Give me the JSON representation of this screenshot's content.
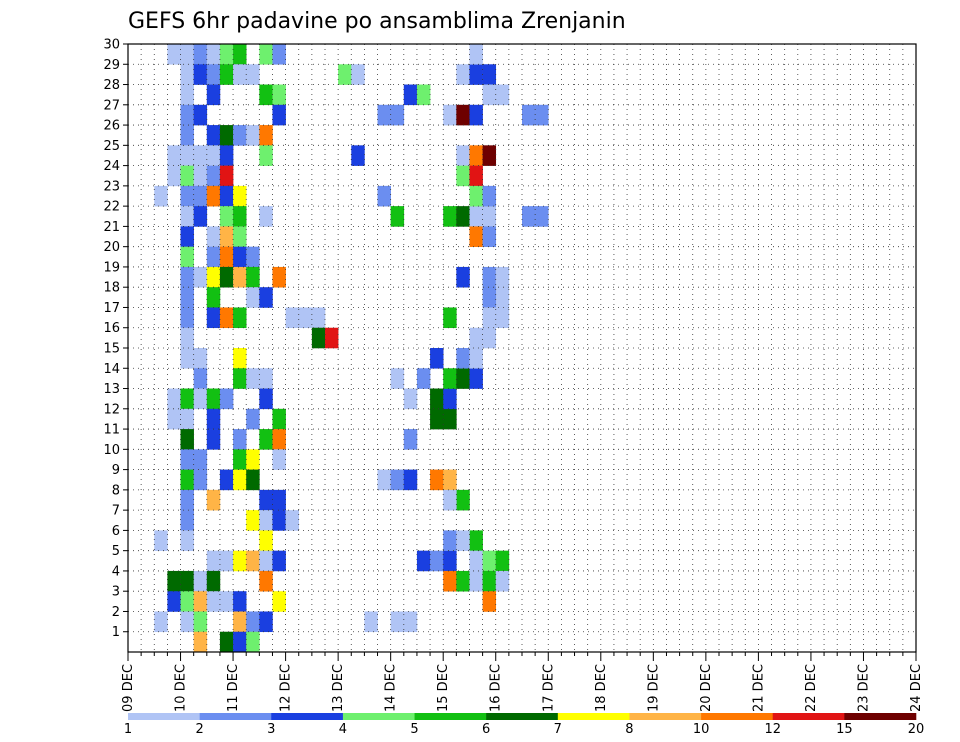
{
  "chart_data": {
    "type": "heatmap",
    "title": "GEFS 6hr padavine po ansamblima Zrenjanin",
    "xlabel": "",
    "ylabel": "",
    "x_axis": {
      "unit": "6-hour steps",
      "start_label_index": 0,
      "tick_labels": [
        "09 DEC",
        "10 DEC",
        "11 DEC",
        "12 DEC",
        "13 DEC",
        "14 DEC",
        "15 DEC",
        "16 DEC",
        "17 DEC",
        "18 DEC",
        "19 DEC",
        "20 DEC",
        "21 DEC",
        "22 DEC",
        "23 DEC",
        "24 DEC"
      ],
      "range": [
        0,
        60
      ]
    },
    "y_axis": {
      "tick_labels": [
        "1",
        "2",
        "3",
        "4",
        "5",
        "6",
        "7",
        "8",
        "9",
        "10",
        "11",
        "12",
        "13",
        "14",
        "15",
        "16",
        "17",
        "18",
        "19",
        "20",
        "21",
        "22",
        "23",
        "24",
        "25",
        "26",
        "27",
        "28",
        "29",
        "30"
      ],
      "range": [
        0,
        30
      ]
    },
    "grid": true,
    "colorbar": {
      "levels": [
        "1",
        "2",
        "3",
        "4",
        "5",
        "6",
        "7",
        "8",
        "10",
        "12",
        "15",
        "20"
      ],
      "colors": [
        "#b0c4f5",
        "#6b8ef0",
        "#1a3fe0",
        "#6ef06e",
        "#12c012",
        "#006a00",
        "#ffff00",
        "#ffb446",
        "#ff7800",
        "#e11414",
        "#6e0000"
      ]
    },
    "cells": [
      [
        3,
        29,
        0
      ],
      [
        4,
        29,
        0
      ],
      [
        5,
        29,
        1
      ],
      [
        6,
        29,
        0
      ],
      [
        7,
        29,
        3
      ],
      [
        8,
        29,
        4
      ],
      [
        10,
        29,
        3
      ],
      [
        11,
        29,
        1
      ],
      [
        4,
        28,
        0
      ],
      [
        5,
        28,
        2
      ],
      [
        6,
        28,
        1
      ],
      [
        7,
        28,
        4
      ],
      [
        8,
        28,
        0
      ],
      [
        9,
        28,
        0
      ],
      [
        4,
        27,
        0
      ],
      [
        6,
        27,
        2
      ],
      [
        10,
        27,
        4
      ],
      [
        11,
        27,
        3
      ],
      [
        4,
        26,
        1
      ],
      [
        5,
        26,
        2
      ],
      [
        11,
        26,
        2
      ],
      [
        4,
        25,
        1
      ],
      [
        6,
        25,
        2
      ],
      [
        7,
        25,
        5
      ],
      [
        8,
        25,
        1
      ],
      [
        9,
        25,
        0
      ],
      [
        10,
        25,
        8
      ],
      [
        3,
        24,
        0
      ],
      [
        4,
        24,
        0
      ],
      [
        5,
        24,
        0
      ],
      [
        6,
        24,
        0
      ],
      [
        7,
        24,
        2
      ],
      [
        10,
        24,
        3
      ],
      [
        3,
        23,
        0
      ],
      [
        4,
        23,
        3
      ],
      [
        5,
        23,
        0
      ],
      [
        6,
        23,
        1
      ],
      [
        7,
        23,
        9
      ],
      [
        2,
        22,
        0
      ],
      [
        4,
        22,
        1
      ],
      [
        5,
        22,
        1
      ],
      [
        6,
        22,
        8
      ],
      [
        7,
        22,
        2
      ],
      [
        8,
        22,
        6
      ],
      [
        4,
        21,
        0
      ],
      [
        5,
        21,
        2
      ],
      [
        7,
        21,
        3
      ],
      [
        8,
        21,
        4
      ],
      [
        10,
        21,
        0
      ],
      [
        4,
        20,
        2
      ],
      [
        6,
        20,
        0
      ],
      [
        7,
        20,
        7
      ],
      [
        8,
        20,
        3
      ],
      [
        4,
        19,
        3
      ],
      [
        6,
        19,
        1
      ],
      [
        7,
        19,
        8
      ],
      [
        8,
        19,
        2
      ],
      [
        9,
        19,
        1
      ],
      [
        4,
        18,
        1
      ],
      [
        5,
        18,
        0
      ],
      [
        6,
        18,
        6
      ],
      [
        7,
        18,
        5
      ],
      [
        8,
        18,
        7
      ],
      [
        9,
        18,
        4
      ],
      [
        11,
        18,
        8
      ],
      [
        4,
        17,
        1
      ],
      [
        6,
        17,
        4
      ],
      [
        9,
        17,
        0
      ],
      [
        10,
        17,
        2
      ],
      [
        4,
        16,
        1
      ],
      [
        6,
        16,
        2
      ],
      [
        7,
        16,
        8
      ],
      [
        8,
        16,
        4
      ],
      [
        12,
        16,
        0
      ],
      [
        4,
        15,
        0
      ],
      [
        4,
        14,
        0
      ],
      [
        5,
        14,
        0
      ],
      [
        8,
        14,
        6
      ],
      [
        5,
        13,
        1
      ],
      [
        8,
        13,
        4
      ],
      [
        9,
        13,
        0
      ],
      [
        10,
        13,
        0
      ],
      [
        3,
        12,
        0
      ],
      [
        4,
        12,
        4
      ],
      [
        5,
        12,
        0
      ],
      [
        6,
        12,
        4
      ],
      [
        7,
        12,
        1
      ],
      [
        10,
        12,
        2
      ],
      [
        3,
        11,
        0
      ],
      [
        4,
        11,
        0
      ],
      [
        6,
        11,
        2
      ],
      [
        9,
        11,
        1
      ],
      [
        11,
        11,
        4
      ],
      [
        4,
        10,
        5
      ],
      [
        6,
        10,
        2
      ],
      [
        8,
        10,
        1
      ],
      [
        10,
        10,
        4
      ],
      [
        11,
        10,
        8
      ],
      [
        4,
        9,
        1
      ],
      [
        5,
        9,
        1
      ],
      [
        8,
        9,
        4
      ],
      [
        9,
        9,
        6
      ],
      [
        11,
        9,
        0
      ],
      [
        4,
        8,
        4
      ],
      [
        5,
        8,
        1
      ],
      [
        7,
        8,
        2
      ],
      [
        8,
        8,
        6
      ],
      [
        9,
        8,
        5
      ],
      [
        4,
        7,
        1
      ],
      [
        6,
        7,
        7
      ],
      [
        10,
        7,
        2
      ],
      [
        11,
        7,
        2
      ],
      [
        4,
        6,
        1
      ],
      [
        9,
        6,
        6
      ],
      [
        10,
        6,
        0
      ],
      [
        11,
        6,
        2
      ],
      [
        12,
        6,
        0
      ],
      [
        2,
        5,
        0
      ],
      [
        4,
        5,
        0
      ],
      [
        10,
        5,
        6
      ],
      [
        6,
        4,
        0
      ],
      [
        7,
        4,
        0
      ],
      [
        8,
        4,
        6
      ],
      [
        9,
        4,
        7
      ],
      [
        10,
        4,
        0
      ],
      [
        11,
        4,
        2
      ],
      [
        3,
        3,
        5
      ],
      [
        4,
        3,
        5
      ],
      [
        5,
        3,
        0
      ],
      [
        6,
        3,
        5
      ],
      [
        10,
        3,
        8
      ],
      [
        3,
        2,
        2
      ],
      [
        4,
        2,
        3
      ],
      [
        5,
        2,
        7
      ],
      [
        6,
        2,
        0
      ],
      [
        7,
        2,
        0
      ],
      [
        8,
        2,
        2
      ],
      [
        11,
        2,
        6
      ],
      [
        2,
        1,
        0
      ],
      [
        4,
        1,
        0
      ],
      [
        5,
        1,
        3
      ],
      [
        8,
        1,
        7
      ],
      [
        9,
        1,
        1
      ],
      [
        10,
        1,
        2
      ],
      [
        5,
        0,
        7
      ],
      [
        7,
        0,
        5
      ],
      [
        8,
        0,
        2
      ],
      [
        9,
        0,
        3
      ],
      [
        13,
        16,
        0
      ],
      [
        14,
        16,
        0
      ],
      [
        14,
        15,
        5
      ],
      [
        15,
        15,
        9
      ],
      [
        16,
        28,
        3
      ],
      [
        17,
        28,
        0
      ],
      [
        17,
        24,
        2
      ],
      [
        19,
        26,
        1
      ],
      [
        20,
        26,
        1
      ],
      [
        21,
        27,
        2
      ],
      [
        22,
        27,
        3
      ],
      [
        19,
        22,
        1
      ],
      [
        20,
        21,
        4
      ],
      [
        19,
        8,
        0
      ],
      [
        20,
        8,
        1
      ],
      [
        21,
        8,
        2
      ],
      [
        20,
        13,
        0
      ],
      [
        21,
        12,
        0
      ],
      [
        21,
        1,
        0
      ],
      [
        20,
        1,
        0
      ],
      [
        21,
        10,
        1
      ],
      [
        18,
        1,
        0
      ],
      [
        22,
        13,
        1
      ],
      [
        23,
        14,
        2
      ],
      [
        22,
        4,
        2
      ],
      [
        23,
        4,
        1
      ],
      [
        24,
        4,
        2
      ],
      [
        24,
        3,
        8
      ],
      [
        25,
        3,
        4
      ],
      [
        24,
        5,
        1
      ],
      [
        23,
        8,
        8
      ],
      [
        24,
        8,
        7
      ],
      [
        23,
        11,
        5
      ],
      [
        24,
        11,
        5
      ],
      [
        23,
        12,
        5
      ],
      [
        24,
        12,
        2
      ],
      [
        24,
        13,
        4
      ],
      [
        25,
        13,
        5
      ],
      [
        26,
        13,
        2
      ],
      [
        25,
        14,
        1
      ],
      [
        26,
        14,
        0
      ],
      [
        24,
        16,
        4
      ],
      [
        25,
        7,
        4
      ],
      [
        24,
        7,
        0
      ],
      [
        24,
        21,
        4
      ],
      [
        25,
        21,
        5
      ],
      [
        26,
        21,
        0
      ],
      [
        27,
        21,
        0
      ],
      [
        24,
        26,
        0
      ],
      [
        25,
        26,
        10
      ],
      [
        26,
        26,
        2
      ],
      [
        25,
        28,
        0
      ],
      [
        26,
        28,
        2
      ],
      [
        27,
        28,
        2
      ],
      [
        26,
        29,
        0
      ],
      [
        25,
        24,
        0
      ],
      [
        26,
        24,
        8
      ],
      [
        27,
        24,
        10
      ],
      [
        25,
        23,
        3
      ],
      [
        26,
        23,
        9
      ],
      [
        26,
        22,
        3
      ],
      [
        27,
        22,
        1
      ],
      [
        26,
        20,
        8
      ],
      [
        27,
        20,
        1
      ],
      [
        25,
        18,
        2
      ],
      [
        27,
        18,
        1
      ],
      [
        28,
        18,
        0
      ],
      [
        28,
        17,
        0
      ],
      [
        27,
        17,
        1
      ],
      [
        27,
        16,
        0
      ],
      [
        28,
        16,
        0
      ],
      [
        26,
        15,
        0
      ],
      [
        27,
        15,
        0
      ],
      [
        26,
        5,
        4
      ],
      [
        25,
        5,
        0
      ],
      [
        26,
        4,
        0
      ],
      [
        27,
        4,
        3
      ],
      [
        28,
        4,
        4
      ],
      [
        26,
        3,
        0
      ],
      [
        27,
        3,
        4
      ],
      [
        28,
        3,
        0
      ],
      [
        27,
        2,
        8
      ],
      [
        27,
        27,
        0
      ],
      [
        28,
        27,
        0
      ],
      [
        30,
        26,
        1
      ],
      [
        31,
        26,
        1
      ],
      [
        30,
        21,
        1
      ],
      [
        31,
        21,
        1
      ]
    ]
  }
}
